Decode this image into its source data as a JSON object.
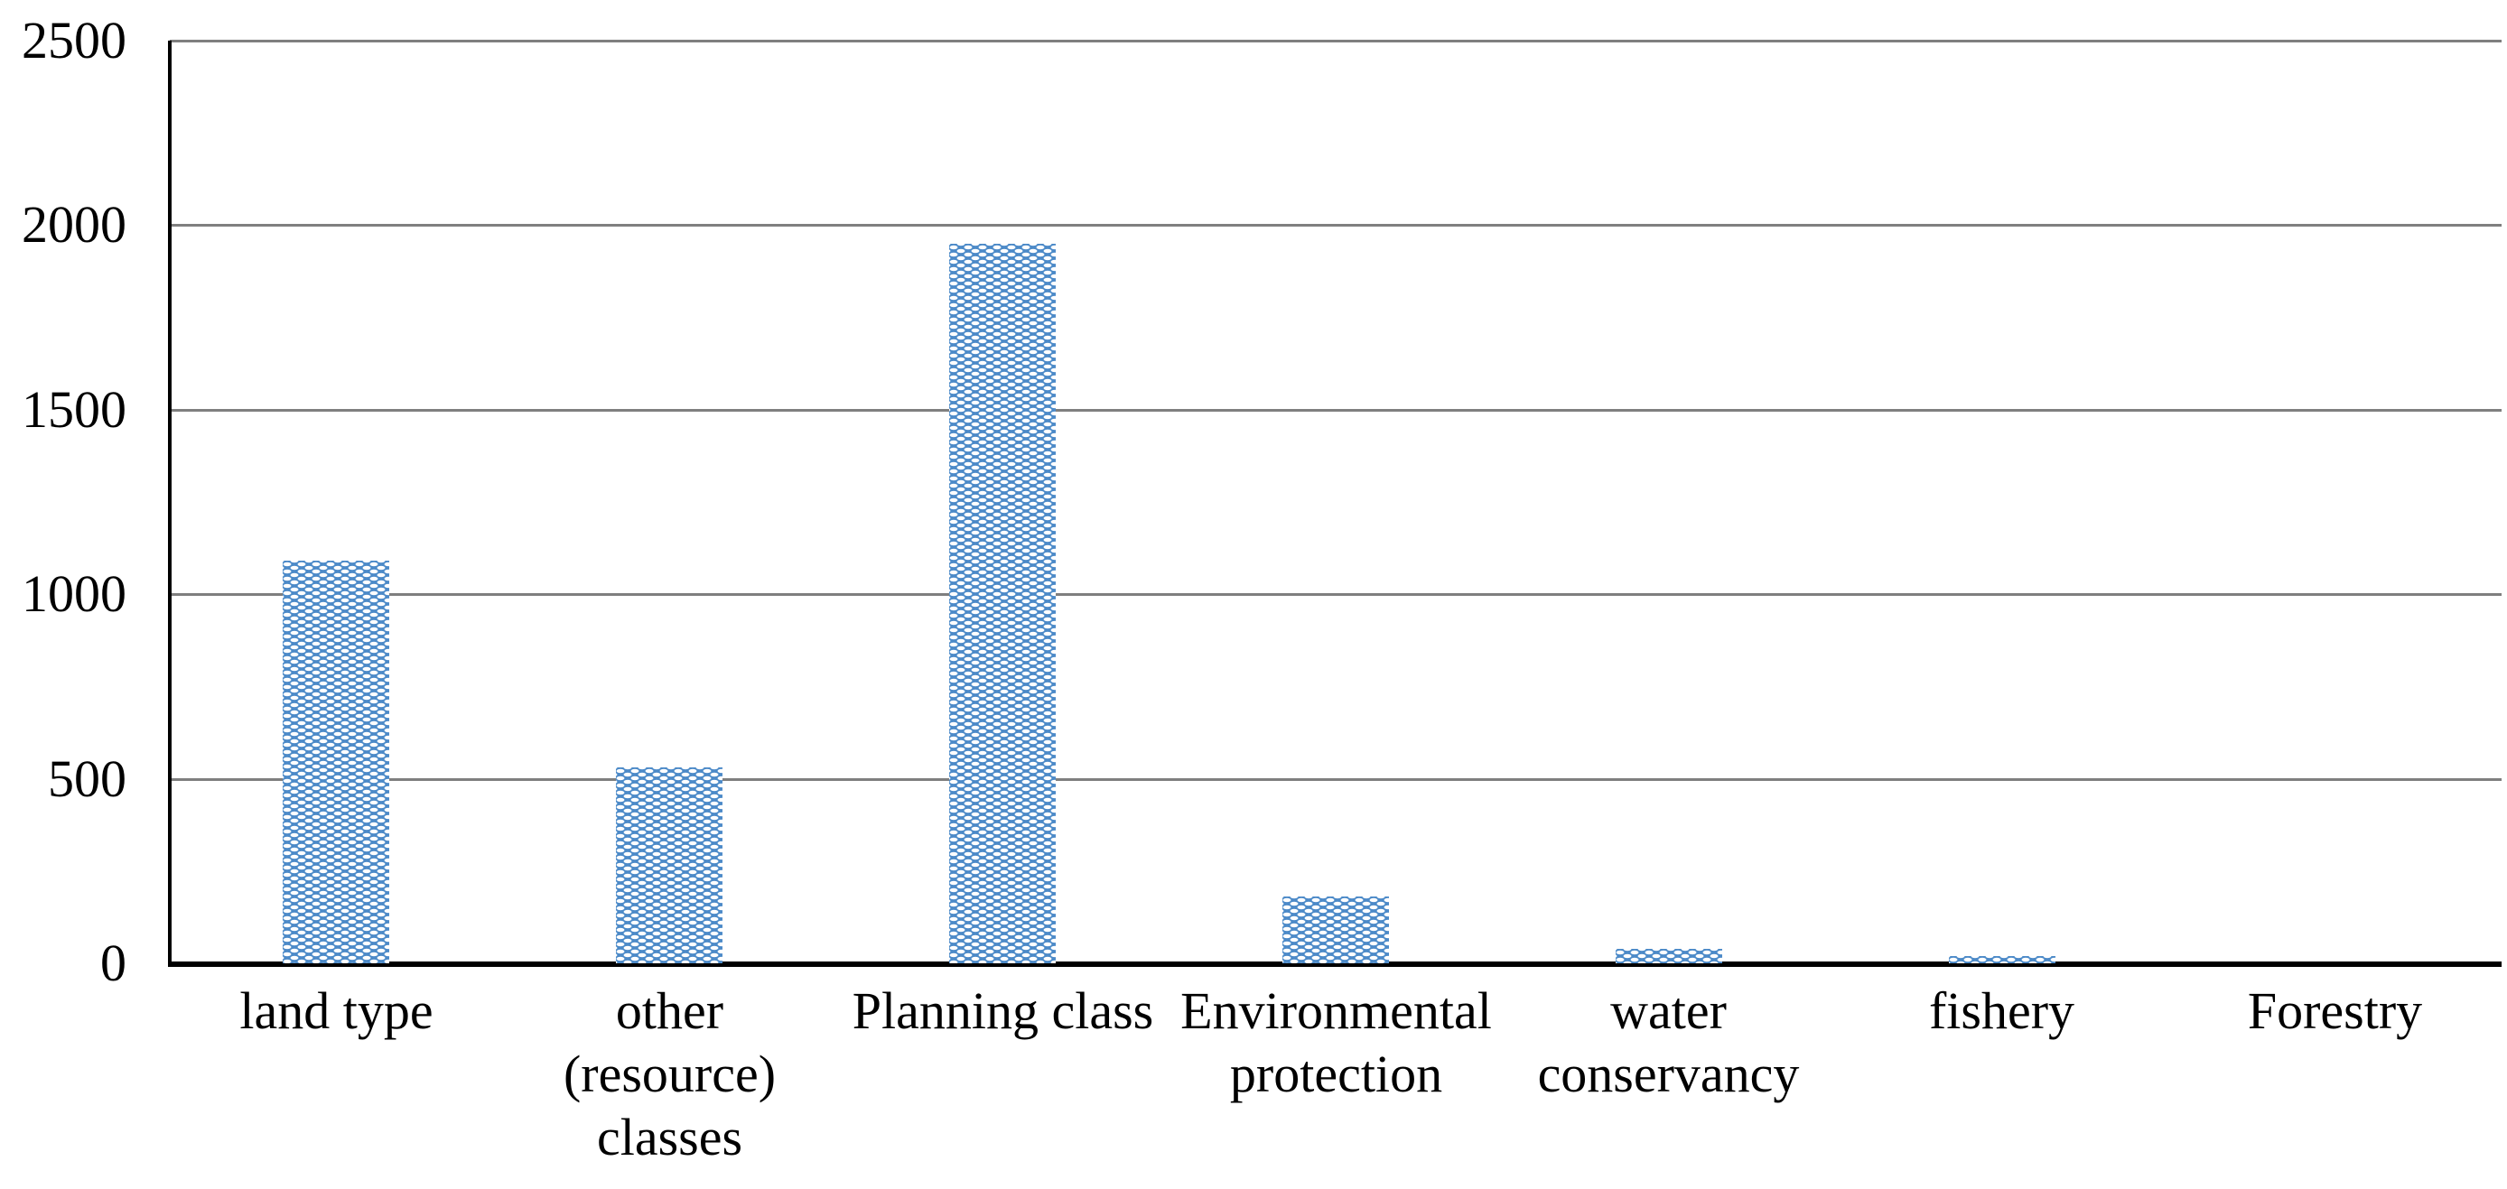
{
  "chart_data": {
    "type": "bar",
    "title": "",
    "xlabel": "",
    "ylabel": "",
    "categories": [
      "land type",
      "other (resource) classes",
      "Planning class",
      "Environmental protection",
      "water conservancy",
      "fishery",
      "Forestry"
    ],
    "category_lines": [
      [
        "land type"
      ],
      [
        "other",
        "(resource)",
        "classes"
      ],
      [
        "Planning class"
      ],
      [
        "Environmental",
        "protection"
      ],
      [
        "water",
        "conservancy"
      ],
      [
        "fishery"
      ],
      [
        "Forestry"
      ]
    ],
    "values": [
      1090,
      530,
      1950,
      180,
      40,
      20,
      0
    ],
    "ylim": [
      0,
      2500
    ],
    "ytick_interval": 500,
    "ytick_labels": [
      "0",
      "500",
      "1000",
      "1500",
      "2000",
      "2500"
    ],
    "grid": true,
    "legend_position": "none",
    "bar_color": "#4c8ac8",
    "bar_pattern": "white-dash-checker",
    "gridline_color": "#7f7f7f",
    "axis_color": "#000000",
    "text_color": "#000000"
  }
}
